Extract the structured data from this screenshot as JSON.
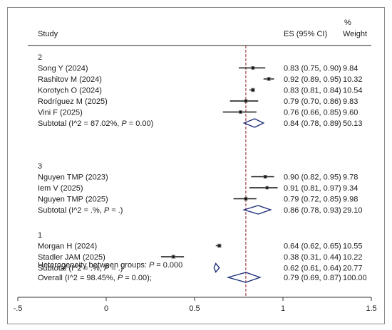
{
  "chart_data": {
    "type": "forest",
    "headers": {
      "study": "Study",
      "es": "ES (95% CI)",
      "weight_top": "%",
      "weight": "Weight"
    },
    "xlim": [
      -0.5,
      1.5
    ],
    "x_ticks": [
      -0.5,
      0,
      0.5,
      1,
      1.5
    ],
    "x_tick_labels": [
      "-.5",
      "0",
      "0.5",
      "1",
      "1.5"
    ],
    "reference_line": 0.79,
    "groups": [
      {
        "label": "2",
        "studies": [
          {
            "name": "Song Y (2024)",
            "es": 0.83,
            "lo": 0.75,
            "hi": 0.9,
            "ci_text": "0.83 (0.75, 0.90)",
            "weight": "9.84"
          },
          {
            "name": "Rashitov M (2024)",
            "es": 0.92,
            "lo": 0.89,
            "hi": 0.95,
            "ci_text": "0.92 (0.89, 0.95)",
            "weight": "10.32"
          },
          {
            "name": "Korotych O (2024)",
            "es": 0.83,
            "lo": 0.81,
            "hi": 0.84,
            "ci_text": "0.83 (0.81, 0.84)",
            "weight": "10.54"
          },
          {
            "name": "Rodríguez M (2025)",
            "es": 0.79,
            "lo": 0.7,
            "hi": 0.86,
            "ci_text": "0.79 (0.70, 0.86)",
            "weight": "9.83"
          },
          {
            "name": "Vini F (2025)",
            "es": 0.76,
            "lo": 0.66,
            "hi": 0.85,
            "ci_text": "0.76 (0.66, 0.85)",
            "weight": "9.60"
          }
        ],
        "subtotal": {
          "label_pre": "Subtotal  (I^2 = 87.02%, ",
          "p_label": "P",
          "label_post": "= 0.00)",
          "es": 0.84,
          "lo": 0.78,
          "hi": 0.89,
          "ci_text": "0.84 (0.78, 0.89)",
          "weight": "50.13"
        }
      },
      {
        "label": "3",
        "studies": [
          {
            "name": "Nguyen TMP (2023)",
            "es": 0.9,
            "lo": 0.82,
            "hi": 0.95,
            "ci_text": "0.90 (0.82, 0.95)",
            "weight": "9.78"
          },
          {
            "name": "Iem V (2025)",
            "es": 0.91,
            "lo": 0.81,
            "hi": 0.97,
            "ci_text": "0.91 (0.81, 0.97)",
            "weight": "9.34"
          },
          {
            "name": "Nguyen TMP (2025)",
            "es": 0.79,
            "lo": 0.72,
            "hi": 0.85,
            "ci_text": "0.79 (0.72, 0.85)",
            "weight": "9.98"
          }
        ],
        "subtotal": {
          "label_pre": "Subtotal  (I^2 = .%, ",
          "p_label": "P",
          "label_post": "= .)",
          "es": 0.86,
          "lo": 0.78,
          "hi": 0.93,
          "ci_text": "0.86 (0.78, 0.93)",
          "weight": "29.10"
        }
      },
      {
        "label": "1",
        "studies": [
          {
            "name": "Morgan H (2024)",
            "es": 0.64,
            "lo": 0.62,
            "hi": 0.65,
            "ci_text": "0.64 (0.62, 0.65)",
            "weight": "10.55"
          },
          {
            "name": "Stadler JAM (2025)",
            "es": 0.38,
            "lo": 0.31,
            "hi": 0.44,
            "ci_text": "0.38 (0.31, 0.44)",
            "weight": "10.22"
          }
        ],
        "subtotal": {
          "label_pre": "Subtotal  (I^2 = .%, ",
          "p_label": "P",
          "label_post": "= .)",
          "es": 0.62,
          "lo": 0.61,
          "hi": 0.64,
          "ci_text": "0.62 (0.61, 0.64)",
          "weight": "20.77"
        }
      }
    ],
    "heterogeneity": {
      "label_pre": "Heterogeneity between groups: ",
      "p_label": "P",
      "label_post": "= 0.000"
    },
    "overall": {
      "label_pre": "Overall  (I^2 = 98.45%, ",
      "p_label": "P",
      "label_post": "= 0.00);",
      "es": 0.79,
      "lo": 0.69,
      "hi": 0.87,
      "ci_text": "0.79 (0.69, 0.87)",
      "weight": "100.00"
    },
    "colors": {
      "diamond": "#1f2f7a",
      "reference_line": "#8b2323",
      "ci_line": "#111111",
      "axis": "#333333",
      "frame": "#8a8a8a"
    }
  }
}
